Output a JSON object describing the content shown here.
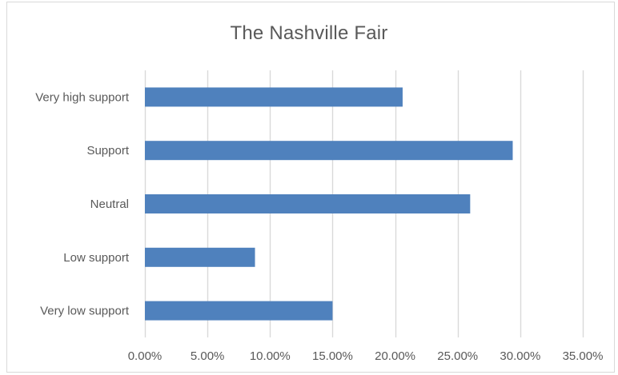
{
  "chart_data": {
    "type": "bar",
    "orientation": "horizontal",
    "title": "The Nashville Fair",
    "categories": [
      "Very high support",
      "Support",
      "Neutral",
      "Low support",
      "Very low support"
    ],
    "values": [
      0.206,
      0.294,
      0.26,
      0.088,
      0.15
    ],
    "xlim": [
      0,
      0.35
    ],
    "xticks": [
      0,
      0.05,
      0.1,
      0.15,
      0.2,
      0.25,
      0.3,
      0.35
    ],
    "xtick_labels": [
      "0.00%",
      "5.00%",
      "10.00%",
      "15.00%",
      "20.00%",
      "25.00%",
      "30.00%",
      "35.00%"
    ],
    "xlabel": "",
    "ylabel": "",
    "grid": "vertical",
    "legend": "none",
    "bar_color": "#4f81bd",
    "grid_color": "#d9d9d9"
  }
}
